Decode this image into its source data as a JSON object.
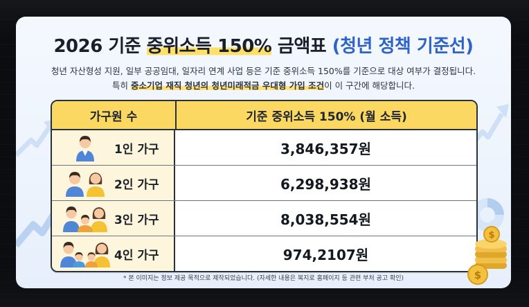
{
  "title": {
    "prefix": "2026 기준",
    "highlight": "중위소득 150%",
    "middle": "금액표",
    "sub": "(청년 정책 기준선)"
  },
  "description": {
    "line1": "청년 자산형성 지원, 일부 공공임대, 일자리 연계 사업 등은 기준 중위소득 150%를 기준으로 대상 여부가 결정됩니다.",
    "line2_pre": "특히 ",
    "line2_highlight": "중소기업 재직 청년의 청년미래적금 우대형 가입 조건",
    "line2_post": "이 이 구간에 해당합니다."
  },
  "table": {
    "headers": [
      "가구원 수",
      "기준 중위소득 150% (월 소득)"
    ],
    "rows": [
      {
        "household": "1인 가구",
        "amount": "3,846,357원",
        "icon": "single-person-icon"
      },
      {
        "household": "2인 가구",
        "amount": "6,298,938원",
        "icon": "two-people-icon"
      },
      {
        "household": "3인 가구",
        "amount": "8,038,554원",
        "icon": "three-people-icon"
      },
      {
        "household": "4인 가구",
        "amount": "974,2107원",
        "icon": "four-people-icon"
      }
    ]
  },
  "footnote": "* 본 이미지는 정보 제공 목적으로 제작되었습니다. (자세한 내용은 복지로 홈페이지 등 관련 부처 공고 확인)",
  "colors": {
    "header_bg": "#fbd862",
    "accent_blue": "#2f63c8",
    "highlight_yellow": "#ffe066",
    "label_cell_bg": "#fdf6dc"
  }
}
